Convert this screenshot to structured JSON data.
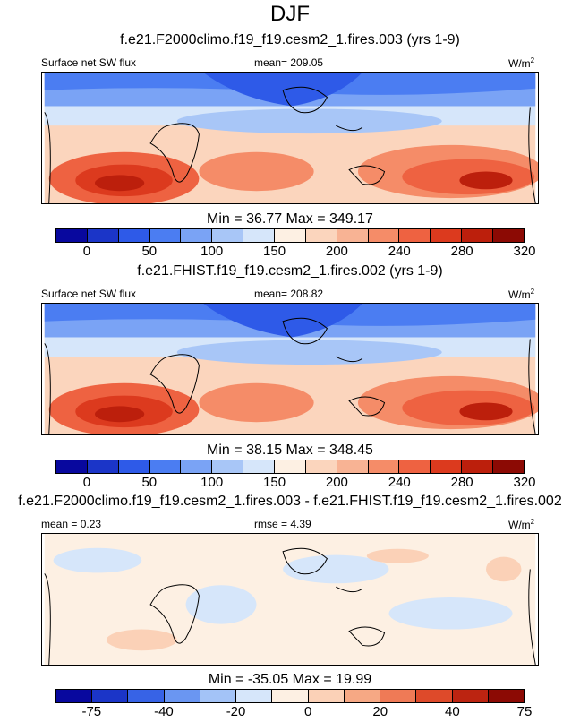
{
  "season": "DJF",
  "panels": [
    {
      "title": "f.e21.F2000climo.f19_f19.cesm2_1.fires.003 (yrs 1-9)",
      "variable": "Surface net SW flux",
      "stat_text": "mean= 209.05",
      "units": "W/m",
      "units_sup": "2",
      "minmax": "Min =  36.77 Max = 349.17",
      "colorbar_ticks": [
        "0",
        "50",
        "100",
        "150",
        "200",
        "240",
        "280",
        "320"
      ],
      "palette": "abs"
    },
    {
      "title": "f.e21.FHIST.f19_f19.cesm2_1.fires.002 (yrs 1-9)",
      "variable": "Surface net SW flux",
      "stat_text": "mean= 208.82",
      "units": "W/m",
      "units_sup": "2",
      "minmax": "Min =  38.15 Max = 348.45",
      "colorbar_ticks": [
        "0",
        "50",
        "100",
        "150",
        "200",
        "240",
        "280",
        "320"
      ],
      "palette": "abs"
    },
    {
      "title": "f.e21.F2000climo.f19_f19.cesm2_1.fires.003 - f.e21.FHIST.f19_f19.cesm2_1.fires.002",
      "variable": "mean =   0.23",
      "stat_text": "rmse =   4.39",
      "units": "W/m",
      "units_sup": "2",
      "minmax": "Min = -35.05 Max =  19.99",
      "colorbar_ticks": [
        "-75",
        "-40",
        "-20",
        "0",
        "20",
        "40",
        "75"
      ],
      "palette": "diff"
    }
  ],
  "palettes": {
    "abs": [
      "#08089e",
      "#1b35c8",
      "#2e5ae8",
      "#4b7df2",
      "#7aa3f5",
      "#a8c6f7",
      "#d6e6fa",
      "#fdf0e3",
      "#fbd5bd",
      "#f8b394",
      "#f58c68",
      "#ee6241",
      "#dc3a1e",
      "#bc1f0c",
      "#8c0a04"
    ],
    "diff": [
      "#08089e",
      "#1b35c8",
      "#3763e6",
      "#6a96f2",
      "#a3c3f7",
      "#d6e6fa",
      "#fdf0e3",
      "#fbd1b7",
      "#f6a884",
      "#ef7a56",
      "#de4a2a",
      "#bc2411",
      "#8c0a04"
    ]
  },
  "chart_data": [
    {
      "type": "heatmap",
      "title": "f.e21.F2000climo.f19_f19.cesm2_1.fires.003 (yrs 1-9)",
      "variable": "Surface net SW flux",
      "units": "W/m2",
      "mean": 209.05,
      "min": 36.77,
      "max": 349.17,
      "colorbar_levels": [
        0,
        50,
        100,
        150,
        200,
        240,
        280,
        320
      ]
    },
    {
      "type": "heatmap",
      "title": "f.e21.FHIST.f19_f19.cesm2_1.fires.002 (yrs 1-9)",
      "variable": "Surface net SW flux",
      "units": "W/m2",
      "mean": 208.82,
      "min": 38.15,
      "max": 348.45,
      "colorbar_levels": [
        0,
        50,
        100,
        150,
        200,
        240,
        280,
        320
      ]
    },
    {
      "type": "heatmap",
      "title": "f.e21.F2000climo.f19_f19.cesm2_1.fires.003 - f.e21.FHIST.f19_f19.cesm2_1.fires.002",
      "units": "W/m2",
      "mean": 0.23,
      "rmse": 4.39,
      "min": -35.05,
      "max": 19.99,
      "colorbar_levels": [
        -75,
        -40,
        -20,
        0,
        20,
        40,
        75
      ]
    }
  ]
}
